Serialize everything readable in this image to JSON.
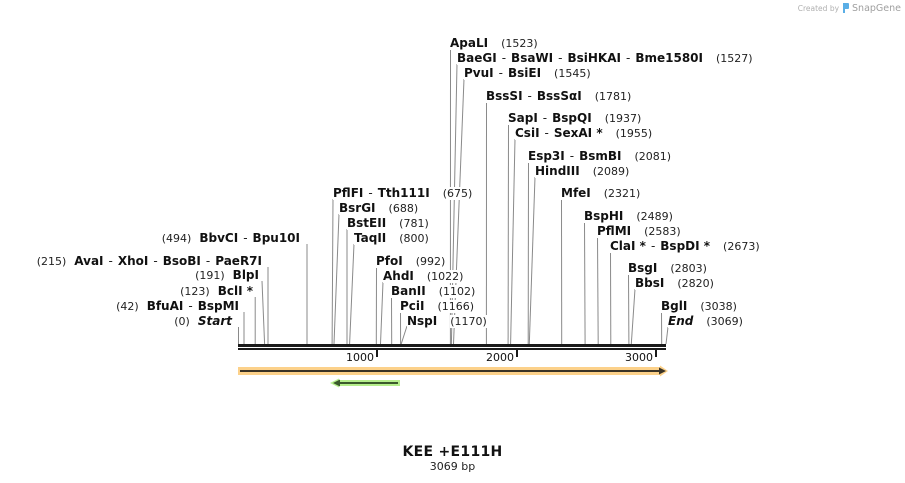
{
  "watermark": {
    "prefix": "Created by",
    "brand": "SnapGene",
    "logo_icon": "snapgene-logo-icon",
    "logo_color": "#5aaee6"
  },
  "map": {
    "title": "KEE +E111H",
    "length_label": "3069 bp"
  },
  "ruler": {
    "ticks": [
      {
        "label": "1000"
      },
      {
        "label": "2000"
      },
      {
        "label": "3000"
      }
    ],
    "color": "#1a1a1a"
  },
  "features": [
    {
      "direction": "forward",
      "fill_color": "#fcd18a",
      "line_color": "#3a3326"
    },
    {
      "direction": "reverse",
      "fill_color": "#b6ef8c",
      "line_color": "#3b5a2c"
    }
  ],
  "separator": "-",
  "sites": [
    {
      "enzymes": [
        "BbvCI",
        "Bpu10I"
      ],
      "position_label": "(494)"
    },
    {
      "enzymes": [
        "AvaI",
        "XhoI",
        "BsoBI",
        "PaeR7I"
      ],
      "position_label": "(215)"
    },
    {
      "enzymes": [
        "BlpI"
      ],
      "position_label": "(191)"
    },
    {
      "enzymes": [
        "BclI *"
      ],
      "position_label": "(123)"
    },
    {
      "enzymes": [
        "BfuAI",
        "BspMI"
      ],
      "position_label": "(42)"
    },
    {
      "enzymes": [
        "Start"
      ],
      "position_label": "(0)",
      "kind": "terminus"
    },
    {
      "enzymes": [
        "PflFI",
        "Tth111I"
      ],
      "position_label": "(675)"
    },
    {
      "enzymes": [
        "BsrGI"
      ],
      "position_label": "(688)"
    },
    {
      "enzymes": [
        "BstEII"
      ],
      "position_label": "(781)"
    },
    {
      "enzymes": [
        "TaqII"
      ],
      "position_label": "(800)"
    },
    {
      "enzymes": [
        "PfoI"
      ],
      "position_label": "(992)"
    },
    {
      "enzymes": [
        "AhdI"
      ],
      "position_label": "(1022)"
    },
    {
      "enzymes": [
        "BanII"
      ],
      "position_label": "(1102)"
    },
    {
      "enzymes": [
        "PciI"
      ],
      "position_label": "(1166)"
    },
    {
      "enzymes": [
        "NspI"
      ],
      "position_label": "(1170)"
    },
    {
      "enzymes": [
        "ApaLI"
      ],
      "position_label": "(1523)"
    },
    {
      "enzymes": [
        "BaeGI",
        "BsaWI",
        "BsiHKAI",
        "Bme1580I"
      ],
      "position_label": "(1527)"
    },
    {
      "enzymes": [
        "PvuI",
        "BsiEI"
      ],
      "position_label": "(1545)"
    },
    {
      "enzymes": [
        "BssSI",
        "BssSαI"
      ],
      "position_label": "(1781)"
    },
    {
      "enzymes": [
        "SapI",
        "BspQI"
      ],
      "position_label": "(1937)"
    },
    {
      "enzymes": [
        "CsiI",
        "SexAI *"
      ],
      "position_label": "(1955)"
    },
    {
      "enzymes": [
        "Esp3I",
        "BsmBI"
      ],
      "position_label": "(2081)"
    },
    {
      "enzymes": [
        "HindIII"
      ],
      "position_label": "(2089)"
    },
    {
      "enzymes": [
        "MfeI"
      ],
      "position_label": "(2321)"
    },
    {
      "enzymes": [
        "BspHI"
      ],
      "position_label": "(2489)"
    },
    {
      "enzymes": [
        "PflMI"
      ],
      "position_label": "(2583)"
    },
    {
      "enzymes": [
        "ClaI *",
        "BspDI *"
      ],
      "position_label": "(2673)"
    },
    {
      "enzymes": [
        "BsgI"
      ],
      "position_label": "(2803)"
    },
    {
      "enzymes": [
        "BbsI"
      ],
      "position_label": "(2820)"
    },
    {
      "enzymes": [
        "BglI"
      ],
      "position_label": "(3038)"
    },
    {
      "enzymes": [
        "End"
      ],
      "position_label": "(3069)",
      "kind": "terminus"
    }
  ]
}
